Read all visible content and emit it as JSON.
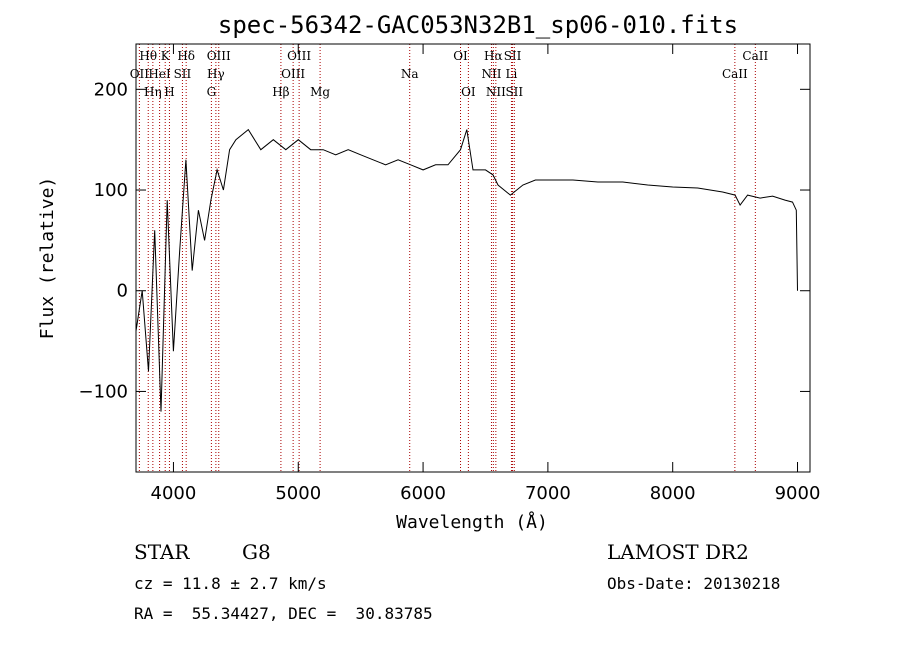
{
  "chart_data": {
    "type": "line",
    "title": "spec-56342-GAC053N32B1_sp06-010.fits",
    "xlabel": "Wavelength (Å)",
    "ylabel": "Flux (relative)",
    "xlim": [
      3700,
      9100
    ],
    "ylim": [
      -180,
      245
    ],
    "x_ticks": [
      4000,
      5000,
      6000,
      7000,
      8000,
      9000
    ],
    "y_ticks": [
      -100,
      0,
      100,
      200
    ],
    "grid": false,
    "line_color": "#000000",
    "marker_color": "#aa0000",
    "series": [
      {
        "x": [
          3700,
          3750,
          3800,
          3850,
          3900,
          3950,
          4000,
          4050,
          4100,
          4150,
          4200,
          4250,
          4300,
          4350,
          4400,
          4450,
          4500,
          4600,
          4700,
          4800,
          4900,
          5000,
          5100,
          5200,
          5300,
          5400,
          5500,
          5600,
          5700,
          5800,
          5900,
          6000,
          6100,
          6200,
          6300,
          6350,
          6400,
          6500,
          6560,
          6600,
          6700,
          6800,
          6900,
          7000,
          7200,
          7400,
          7600,
          7800,
          8000,
          8200,
          8400,
          8500,
          8540,
          8600,
          8700,
          8800,
          8900,
          8960,
          8990,
          9000
        ],
        "y": [
          -40,
          0,
          -80,
          60,
          -120,
          90,
          -60,
          40,
          130,
          20,
          80,
          50,
          90,
          120,
          100,
          140,
          150,
          160,
          140,
          150,
          140,
          150,
          140,
          140,
          135,
          140,
          135,
          130,
          125,
          130,
          125,
          120,
          125,
          125,
          140,
          160,
          120,
          120,
          115,
          105,
          95,
          105,
          110,
          110,
          110,
          108,
          108,
          105,
          103,
          102,
          98,
          95,
          85,
          95,
          92,
          94,
          90,
          88,
          80,
          0
        ]
      }
    ],
    "lines": [
      {
        "name": "Hθ",
        "x": 3798,
        "row": 1
      },
      {
        "name": "OII",
        "x": 3727,
        "row": 2
      },
      {
        "name": "Hη",
        "x": 3835,
        "row": 3
      },
      {
        "name": "HeI",
        "x": 3889,
        "row": 2
      },
      {
        "name": "K",
        "x": 3934,
        "row": 1
      },
      {
        "name": "H",
        "x": 3968,
        "row": 3
      },
      {
        "name": "SII",
        "x": 4072,
        "row": 2
      },
      {
        "name": "Hδ",
        "x": 4102,
        "row": 1
      },
      {
        "name": "G",
        "x": 4304,
        "row": 3
      },
      {
        "name": "Hγ",
        "x": 4340,
        "row": 2
      },
      {
        "name": "OIII",
        "x": 4363,
        "row": 1
      },
      {
        "name": "Hβ",
        "x": 4861,
        "row": 3
      },
      {
        "name": "OIII",
        "x": 4959,
        "row": 2
      },
      {
        "name": "OIII",
        "x": 5007,
        "row": 1
      },
      {
        "name": "Mg",
        "x": 5175,
        "row": 3
      },
      {
        "name": "Na",
        "x": 5893,
        "row": 2
      },
      {
        "name": "OI",
        "x": 6300,
        "row": 1
      },
      {
        "name": "OI",
        "x": 6363,
        "row": 3
      },
      {
        "name": "NII",
        "x": 6548,
        "row": 2
      },
      {
        "name": "Hα",
        "x": 6563,
        "row": 1
      },
      {
        "name": "NII",
        "x": 6583,
        "row": 3
      },
      {
        "name": "Li",
        "x": 6708,
        "row": 2
      },
      {
        "name": "SII",
        "x": 6717,
        "row": 1
      },
      {
        "name": "SII",
        "x": 6731,
        "row": 3
      },
      {
        "name": "CaII",
        "x": 8498,
        "row": 2
      },
      {
        "name": "CaII",
        "x": 8662,
        "row": 1
      }
    ]
  },
  "info": {
    "object_class": "STAR",
    "subclass": "G8",
    "survey": "LAMOST DR2",
    "cz": "cz = 11.8 ± 2.7 km/s",
    "obs_date": "Obs-Date: 20130218",
    "coords": "RA =  55.34427, DEC =  30.83785"
  }
}
